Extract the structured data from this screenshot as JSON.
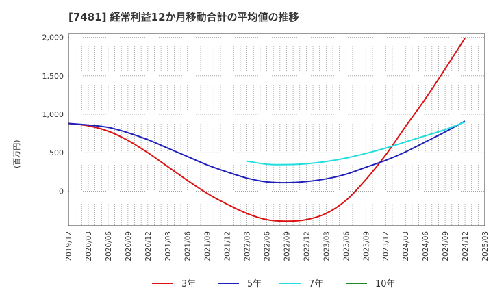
{
  "chart_data": {
    "type": "line",
    "title": "[7481]  経常利益12か月移動合計の平均値の推移",
    "ylabel": "(百万円)",
    "xlabel": "",
    "ylim": [
      -450,
      2050
    ],
    "y_ticks": [
      0,
      500,
      1000,
      1500,
      2000
    ],
    "y_tick_labels": [
      "0",
      "500",
      "1,000",
      "1,500",
      "2,000"
    ],
    "x_start": "2019-12",
    "x_end": "2025-03",
    "x_tick_labels": [
      "2019/12",
      "2020/03",
      "2020/06",
      "2020/09",
      "2020/12",
      "2021/03",
      "2021/06",
      "2021/09",
      "2021/12",
      "2022/03",
      "2022/06",
      "2022/09",
      "2022/12",
      "2023/03",
      "2023/06",
      "2023/09",
      "2023/12",
      "2024/03",
      "2024/06",
      "2024/09",
      "2024/12",
      "2025/03"
    ],
    "grid": true,
    "legend_position": "bottom",
    "series": [
      {
        "name": "3年",
        "color": "#dd1111",
        "points": [
          [
            "2019-12",
            880
          ],
          [
            "2020-03",
            850
          ],
          [
            "2020-06",
            780
          ],
          [
            "2020-09",
            660
          ],
          [
            "2020-12",
            500
          ],
          [
            "2021-03",
            320
          ],
          [
            "2021-06",
            140
          ],
          [
            "2021-09",
            -30
          ],
          [
            "2021-12",
            -170
          ],
          [
            "2022-03",
            -290
          ],
          [
            "2022-06",
            -370
          ],
          [
            "2022-09",
            -390
          ],
          [
            "2022-12",
            -370
          ],
          [
            "2023-03",
            -290
          ],
          [
            "2023-06",
            -120
          ],
          [
            "2023-09",
            150
          ],
          [
            "2023-12",
            470
          ],
          [
            "2024-03",
            840
          ],
          [
            "2024-06",
            1200
          ],
          [
            "2024-09",
            1590
          ],
          [
            "2024-12",
            1990
          ]
        ]
      },
      {
        "name": "5年",
        "color": "#1f1fbb",
        "points": [
          [
            "2019-12",
            880
          ],
          [
            "2020-03",
            860
          ],
          [
            "2020-06",
            830
          ],
          [
            "2020-09",
            760
          ],
          [
            "2020-12",
            670
          ],
          [
            "2021-03",
            560
          ],
          [
            "2021-06",
            450
          ],
          [
            "2021-09",
            340
          ],
          [
            "2021-12",
            250
          ],
          [
            "2022-03",
            170
          ],
          [
            "2022-06",
            120
          ],
          [
            "2022-09",
            110
          ],
          [
            "2022-12",
            125
          ],
          [
            "2023-03",
            160
          ],
          [
            "2023-06",
            220
          ],
          [
            "2023-09",
            310
          ],
          [
            "2023-12",
            400
          ],
          [
            "2024-03",
            510
          ],
          [
            "2024-06",
            640
          ],
          [
            "2024-09",
            770
          ],
          [
            "2024-12",
            910
          ]
        ]
      },
      {
        "name": "7年",
        "color": "#22dddd",
        "points": [
          [
            "2022-03",
            390
          ],
          [
            "2022-06",
            350
          ],
          [
            "2022-09",
            345
          ],
          [
            "2022-12",
            355
          ],
          [
            "2023-03",
            385
          ],
          [
            "2023-06",
            430
          ],
          [
            "2023-09",
            490
          ],
          [
            "2023-12",
            560
          ],
          [
            "2024-03",
            640
          ],
          [
            "2024-06",
            720
          ],
          [
            "2024-09",
            800
          ],
          [
            "2024-12",
            900
          ]
        ]
      },
      {
        "name": "10年",
        "color": "#228822",
        "points": []
      }
    ]
  }
}
